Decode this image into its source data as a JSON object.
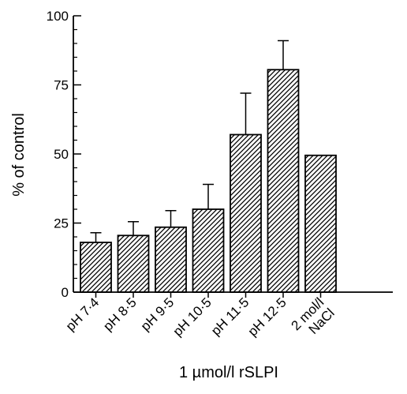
{
  "chart_data": {
    "type": "bar",
    "categories": [
      "pH 7·4",
      "pH 8·5",
      "pH 9·5",
      "pH 10·5",
      "pH 11·5",
      "pH 12·5",
      "2 mol/l NaCl"
    ],
    "category_lines": [
      [
        "pH 7·4"
      ],
      [
        "pH 8·5"
      ],
      [
        "pH 9·5"
      ],
      [
        "pH 10·5"
      ],
      [
        "pH 11·5"
      ],
      [
        "pH 12·5"
      ],
      [
        "2 mol/l",
        "NaCl"
      ]
    ],
    "values": [
      18,
      20.5,
      23.5,
      30,
      57,
      80.5,
      49.5
    ],
    "error_upper": [
      21.5,
      25.5,
      29.5,
      39,
      72,
      91,
      null
    ],
    "title": "",
    "xlabel": "1 µmol/l rSLPI",
    "ylabel": "% of control",
    "ylim": [
      0,
      100
    ],
    "yticks": [
      0,
      25,
      50,
      75,
      100
    ],
    "ytick_labels": [
      "0",
      "25",
      "50",
      "75",
      "100"
    ],
    "grid": false,
    "bar_fill": "diagonal-hatch",
    "colors": {
      "ink": "#000000",
      "background": "#ffffff"
    }
  }
}
